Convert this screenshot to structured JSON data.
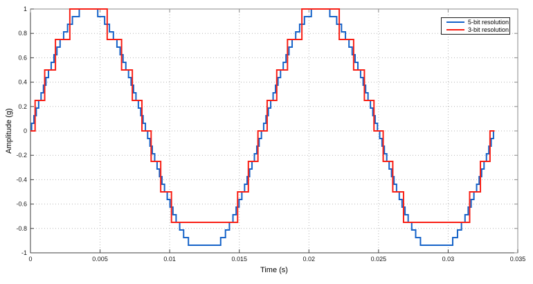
{
  "figure": {
    "background": "#ffffff",
    "frame_box_color": "#8a8a8a",
    "axis_color": "#3c3c3c",
    "grid_color": "#b3b3b3",
    "tick_label_color": "#141414"
  },
  "chart_data": {
    "type": "line",
    "style": "staircase",
    "title": "",
    "xlabel": "Time (s)",
    "ylabel": "Amplitude (g)",
    "xlim": [
      0,
      0.035
    ],
    "ylim": [
      -1,
      1
    ],
    "grid": "dotted",
    "legend_position": "northeast",
    "x_ticks": {
      "values": [
        0,
        0.005,
        0.01,
        0.015,
        0.02,
        0.025,
        0.03,
        0.035
      ],
      "labels": [
        "0",
        "0.005",
        "0.01",
        "0.015",
        "0.02",
        "0.025",
        "0.03",
        "0.035"
      ]
    },
    "y_ticks": {
      "values": [
        -1,
        -0.8,
        -0.6,
        -0.4,
        -0.2,
        0,
        0.2,
        0.4,
        0.6,
        0.8,
        1
      ],
      "labels": [
        "-1",
        "-0.8",
        "-0.6",
        "-0.4",
        "-0.2",
        "0",
        "0.2",
        "0.4",
        "0.6",
        "0.8",
        "1"
      ]
    },
    "signal": {
      "shape": "sine",
      "frequency_hz": 60,
      "amplitude_g": 1,
      "duration_s": 0.0333333,
      "periods": 2
    },
    "series": [
      {
        "name": "5-bit resolution",
        "color": "#1462c8",
        "line_width": 2,
        "bits": 5,
        "quantization": "round-to-nearest",
        "quantization_step": 0.0625,
        "levels": [
          -0.9375,
          -0.875,
          -0.8125,
          -0.75,
          -0.6875,
          -0.625,
          -0.5625,
          -0.5,
          -0.4375,
          -0.375,
          -0.3125,
          -0.25,
          -0.1875,
          -0.125,
          -0.0625,
          0,
          0.0625,
          0.125,
          0.1875,
          0.25,
          0.3125,
          0.375,
          0.4375,
          0.5,
          0.5625,
          0.625,
          0.6875,
          0.75,
          0.8125,
          0.875,
          0.9375,
          1
        ]
      },
      {
        "name": "3-bit resolution",
        "color": "#f81e14",
        "line_width": 2,
        "bits": 3,
        "quantization": "round-to-nearest",
        "quantization_step": 0.25,
        "levels": [
          -0.75,
          -0.5,
          -0.25,
          0,
          0.25,
          0.5,
          0.75,
          1
        ]
      }
    ]
  }
}
